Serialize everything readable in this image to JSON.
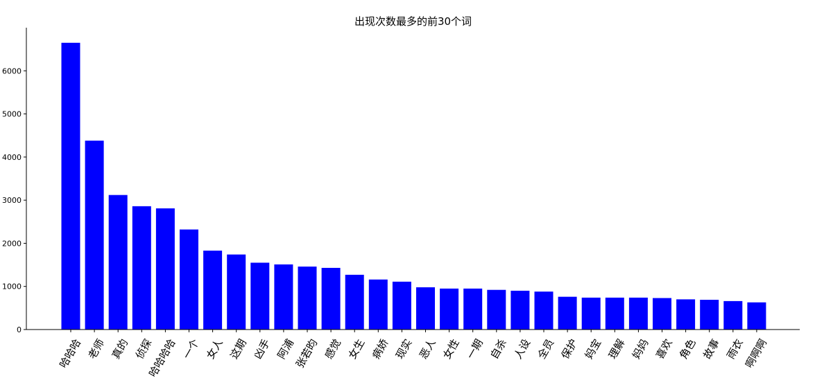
{
  "chart_data": {
    "type": "bar",
    "title": "出现次数最多的前30个词",
    "xlabel": "",
    "ylabel": "",
    "categories": [
      "哈哈哈",
      "老师",
      "真的",
      "侦探",
      "哈哈哈哈",
      "一个",
      "女人",
      "这期",
      "凶手",
      "阿浦",
      "张若昀",
      "感觉",
      "女生",
      "病娇",
      "现实",
      "恶人",
      "女性",
      "一期",
      "自杀",
      "人设",
      "全员",
      "保护",
      "妈宝",
      "理解",
      "妈妈",
      "喜欢",
      "角色",
      "故事",
      "雨衣",
      "啊啊啊"
    ],
    "values": [
      6650,
      4380,
      3120,
      2860,
      2810,
      2320,
      1830,
      1740,
      1550,
      1510,
      1460,
      1430,
      1270,
      1160,
      1110,
      980,
      950,
      950,
      920,
      900,
      880,
      760,
      740,
      740,
      740,
      730,
      700,
      690,
      660,
      630
    ],
    "ylim": [
      0,
      7000
    ],
    "yticks": [
      0,
      1000,
      2000,
      3000,
      4000,
      5000,
      6000
    ],
    "bar_color": "#0000ff",
    "grid": false,
    "legend": "none"
  }
}
